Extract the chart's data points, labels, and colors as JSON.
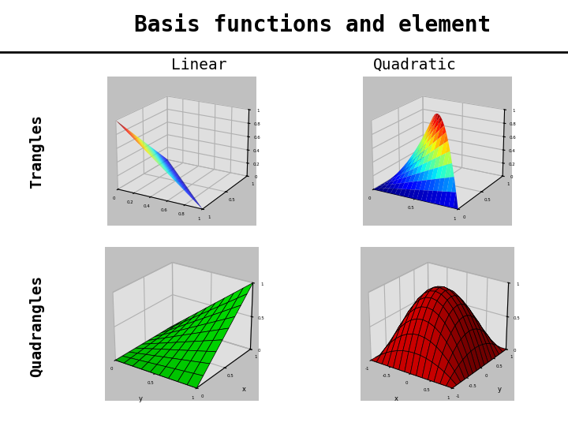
{
  "title": "Basis functions and element",
  "col_labels": [
    "Linear",
    "Quadratic"
  ],
  "row_labels": [
    "Trangles",
    "Quadrangles"
  ],
  "bg_color": "#f0f0f0",
  "panel_bg": "#c0c0c0",
  "header_bg": "#ffffff",
  "title_fontsize": 20,
  "label_fontsize": 14,
  "tick_fontsize": 5,
  "elev1": 20,
  "azim1": -60,
  "elev2": 20,
  "azim2": -60,
  "elev3": 25,
  "azim3": -55,
  "elev4": 25,
  "azim4": -55
}
